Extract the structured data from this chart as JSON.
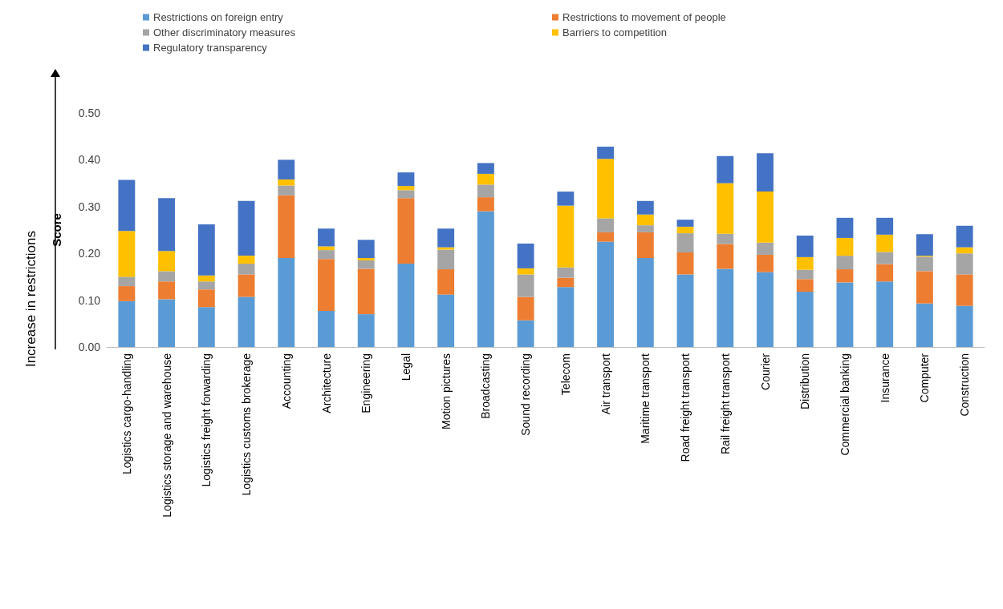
{
  "chart_data": {
    "type": "bar",
    "stacked": true,
    "ylabel": "Score",
    "annotations": [
      "Increase in restrictions"
    ],
    "categories": [
      "Logistics cargo-handling",
      "Logistics storage and warehouse",
      "Logistics freight forwarding",
      "Logistics customs brokerage",
      "Accounting",
      "Architecture",
      "Engineering",
      "Legal",
      "Motion pictures",
      "Broadcasting",
      "Sound recording",
      "Telecom",
      "Air transport",
      "Maritime transport",
      "Road freight transport",
      "Rail freight transport",
      "Courier",
      "Distribution",
      "Commercial banking",
      "Insurance",
      "Computer",
      "Construction"
    ],
    "series": [
      {
        "name": "Restrictions on foreign entry",
        "color": "#5b9bd5",
        "values": [
          0.098,
          0.102,
          0.085,
          0.107,
          0.19,
          0.077,
          0.07,
          0.178,
          0.112,
          0.29,
          0.057,
          0.128,
          0.225,
          0.19,
          0.155,
          0.167,
          0.16,
          0.118,
          0.138,
          0.14,
          0.093,
          0.088
        ]
      },
      {
        "name": "Restrictions to movement of people",
        "color": "#ed7d31",
        "values": [
          0.032,
          0.038,
          0.038,
          0.048,
          0.134,
          0.111,
          0.097,
          0.14,
          0.054,
          0.03,
          0.05,
          0.02,
          0.02,
          0.055,
          0.047,
          0.053,
          0.037,
          0.027,
          0.028,
          0.037,
          0.069,
          0.067
        ]
      },
      {
        "name": "Other discriminatory measures",
        "color": "#a5a5a5",
        "values": [
          0.02,
          0.022,
          0.017,
          0.023,
          0.021,
          0.019,
          0.018,
          0.017,
          0.042,
          0.027,
          0.048,
          0.022,
          0.03,
          0.015,
          0.041,
          0.022,
          0.026,
          0.02,
          0.029,
          0.026,
          0.031,
          0.045
        ]
      },
      {
        "name": "Barriers to competition",
        "color": "#ffc000",
        "values": [
          0.098,
          0.043,
          0.013,
          0.017,
          0.013,
          0.008,
          0.005,
          0.009,
          0.005,
          0.023,
          0.013,
          0.132,
          0.127,
          0.023,
          0.014,
          0.108,
          0.109,
          0.027,
          0.038,
          0.037,
          0.002,
          0.013
        ]
      },
      {
        "name": "Regulatory transparency",
        "color": "#4472c4",
        "values": [
          0.109,
          0.113,
          0.109,
          0.117,
          0.042,
          0.038,
          0.039,
          0.029,
          0.04,
          0.023,
          0.053,
          0.03,
          0.026,
          0.029,
          0.015,
          0.058,
          0.082,
          0.046,
          0.043,
          0.036,
          0.046,
          0.046
        ]
      }
    ],
    "ylim": [
      0,
      0.5
    ],
    "yticks": [
      {
        "value": 0,
        "label": "0.00"
      },
      {
        "value": 0.1,
        "label": "0.10"
      },
      {
        "value": 0.2,
        "label": "0.20"
      },
      {
        "value": 0.3,
        "label": "0.30"
      },
      {
        "value": 0.4,
        "label": "0.40"
      },
      {
        "value": 0.5,
        "label": "0.50"
      }
    ],
    "grid": false,
    "legend": "top left"
  }
}
